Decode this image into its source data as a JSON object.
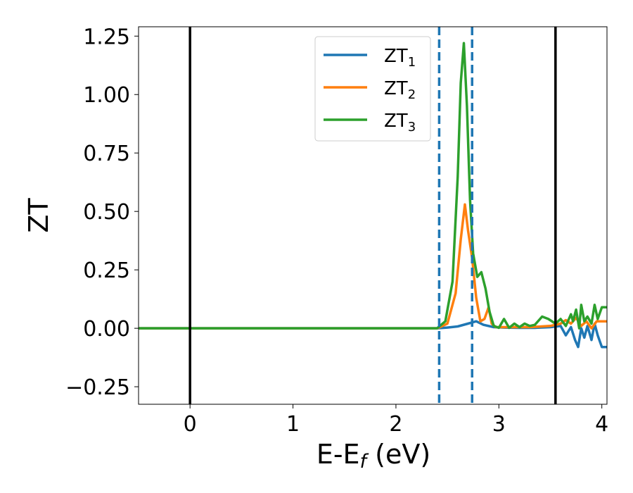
{
  "chart_data": {
    "type": "line",
    "xlabel": "E-E",
    "xlabel_sub": "f",
    "xlabel_unit": " (eV)",
    "ylabel": "ZT",
    "xlim": [
      -0.5,
      4.05
    ],
    "ylim": [
      -0.325,
      1.29
    ],
    "xticks": [
      0,
      1,
      2,
      3,
      4
    ],
    "xtick_labels": [
      "0",
      "1",
      "2",
      "3",
      "4"
    ],
    "yticks": [
      -0.25,
      0.0,
      0.25,
      0.5,
      0.75,
      1.0,
      1.25
    ],
    "ytick_labels": [
      "−0.25",
      "0.00",
      "0.25",
      "0.50",
      "0.75",
      "1.00",
      "1.25"
    ],
    "grid": false,
    "legend_placement": "upper-center",
    "vertical_lines": [
      {
        "x": 0.0,
        "style": "solid",
        "color": "#000000"
      },
      {
        "x": 3.55,
        "style": "solid",
        "color": "#000000"
      },
      {
        "x": 2.42,
        "style": "dashed",
        "color": "#1f77b4"
      },
      {
        "x": 2.74,
        "style": "dashed",
        "color": "#1f77b4"
      }
    ],
    "series": [
      {
        "name": "ZT",
        "name_sub": "1",
        "color": "#1f77b4",
        "x": [
          -0.5,
          2.4,
          2.5,
          2.6,
          2.7,
          2.78,
          2.85,
          2.95,
          3.05,
          3.2,
          3.35,
          3.5,
          3.6,
          3.65,
          3.7,
          3.74,
          3.77,
          3.8,
          3.83,
          3.86,
          3.9,
          3.93,
          3.96,
          4.0,
          4.05
        ],
        "y": [
          0.0,
          0.0,
          0.003,
          0.008,
          0.02,
          0.03,
          0.015,
          0.005,
          0.003,
          0.002,
          0.002,
          0.005,
          0.01,
          -0.03,
          0.005,
          -0.05,
          -0.08,
          0.0,
          -0.04,
          0.01,
          -0.05,
          0.02,
          -0.03,
          -0.08,
          -0.08
        ]
      },
      {
        "name": "ZT",
        "name_sub": "2",
        "color": "#ff7f0e",
        "x": [
          -0.5,
          2.4,
          2.5,
          2.58,
          2.63,
          2.67,
          2.7,
          2.74,
          2.78,
          2.82,
          2.86,
          2.9,
          2.93,
          2.97,
          3.1,
          3.3,
          3.5,
          3.6,
          3.65,
          3.7,
          3.75,
          3.8,
          3.85,
          3.9,
          3.95,
          4.0,
          4.05
        ],
        "y": [
          0.0,
          0.0,
          0.02,
          0.15,
          0.38,
          0.53,
          0.42,
          0.3,
          0.13,
          0.03,
          0.04,
          0.09,
          0.02,
          0.005,
          0.005,
          0.005,
          0.01,
          0.02,
          0.035,
          0.02,
          0.045,
          0.01,
          0.03,
          0.0,
          0.03,
          0.03,
          0.03
        ]
      },
      {
        "name": "ZT",
        "name_sub": "3",
        "color": "#2ca02c",
        "x": [
          -0.5,
          2.4,
          2.48,
          2.55,
          2.6,
          2.63,
          2.66,
          2.69,
          2.72,
          2.75,
          2.79,
          2.83,
          2.87,
          2.91,
          2.95,
          3.0,
          3.05,
          3.1,
          3.15,
          3.2,
          3.25,
          3.3,
          3.35,
          3.42,
          3.48,
          3.55,
          3.6,
          3.65,
          3.7,
          3.72,
          3.75,
          3.78,
          3.8,
          3.83,
          3.86,
          3.9,
          3.93,
          3.96,
          4.0,
          4.05
        ],
        "y": [
          0.0,
          0.0,
          0.03,
          0.2,
          0.65,
          1.05,
          1.22,
          0.95,
          0.55,
          0.32,
          0.22,
          0.24,
          0.17,
          0.07,
          0.01,
          0.002,
          0.04,
          0.002,
          0.02,
          0.005,
          0.02,
          0.01,
          0.015,
          0.05,
          0.04,
          0.02,
          0.04,
          0.01,
          0.06,
          0.03,
          0.08,
          0.0,
          0.1,
          0.03,
          0.05,
          0.02,
          0.1,
          0.04,
          0.09,
          0.09
        ]
      }
    ]
  }
}
